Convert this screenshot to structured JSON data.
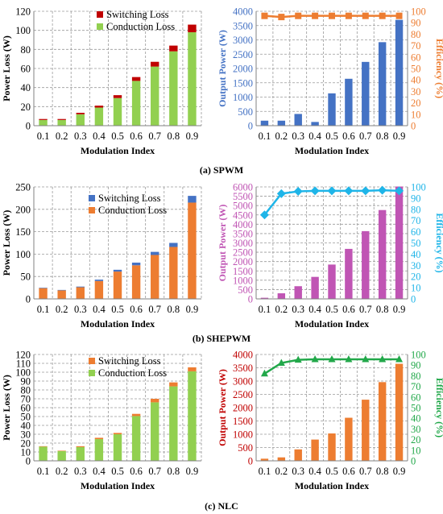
{
  "captions": {
    "a": "(a) SPWM",
    "b": "(b) SHEPWM",
    "c": "(c) NLC"
  },
  "colors": {
    "switching_spwm": "#c00000",
    "conduction_spwm": "#92d050",
    "output_spwm": "#4472c4",
    "eff_spwm": "#ed7d31",
    "switching_shepwm": "#4472c4",
    "conduction_shepwm": "#ed7d31",
    "output_shepwm": "#c055b4",
    "eff_shepwm": "#1fb5e8",
    "switching_nlc": "#ed7d31",
    "conduction_nlc": "#92d050",
    "output_nlc": "#ed7d31",
    "eff_nlc": "#22a84a",
    "axis_blue": "#4472c4",
    "axis_orange": "#ed7d31",
    "axis_magenta": "#c055b4",
    "axis_cyan": "#1fb5e8",
    "axis_red": "#c00000",
    "axis_green": "#22a84a"
  },
  "chart_data": [
    {
      "id": "a-loss",
      "type": "bar",
      "stacked": true,
      "categories": [
        "0.1",
        "0.2",
        "0.3",
        "0.4",
        "0.5",
        "0.6",
        "0.7",
        "0.8",
        "0.9"
      ],
      "series": [
        {
          "name": "Conduction Loss",
          "values": [
            6,
            6,
            12,
            19,
            29,
            47,
            62,
            78,
            98
          ]
        },
        {
          "name": "Switching Loss",
          "values": [
            1,
            1,
            1.5,
            2,
            3,
            4,
            5,
            6,
            8
          ]
        }
      ],
      "xlabel": "Modulation Index",
      "ylabel": "Power Loss (W)",
      "ylim": [
        0,
        120
      ],
      "yticks": [
        0,
        20,
        40,
        60,
        80,
        100,
        120
      ],
      "legend": "top-center",
      "legend_order": [
        "Switching Loss",
        "Conduction Loss"
      ],
      "grid": true
    },
    {
      "id": "a-output",
      "type": "bar",
      "categories": [
        "0.1",
        "0.2",
        "0.3",
        "0.4",
        "0.5",
        "0.6",
        "0.7",
        "0.8",
        "0.9"
      ],
      "series": [
        {
          "name": "Output Power",
          "values": [
            175,
            175,
            410,
            130,
            1130,
            1640,
            2230,
            2920,
            3700
          ]
        },
        {
          "name": "Efficiency",
          "type": "line",
          "axis": "right",
          "marker": "square",
          "values": [
            96,
            95,
            96,
            96,
            96,
            96,
            96,
            96,
            96
          ]
        }
      ],
      "xlabel": "Modulation Index",
      "ylabel": "Output Power (W)",
      "ylim": [
        0,
        4000
      ],
      "yticks": [
        0,
        500,
        1000,
        1500,
        2000,
        2500,
        3000,
        3500,
        4000
      ],
      "y2label": "Efficiency (%)",
      "y2lim": [
        0,
        100
      ],
      "y2ticks": [
        0,
        10,
        20,
        30,
        40,
        50,
        60,
        70,
        80,
        90,
        100
      ],
      "grid": true
    },
    {
      "id": "b-loss",
      "type": "bar",
      "stacked": true,
      "categories": [
        "0.1",
        "0.2",
        "0.3",
        "0.4",
        "0.5",
        "0.6",
        "0.7",
        "0.8",
        "0.9"
      ],
      "series": [
        {
          "name": "Conduction Loss",
          "values": [
            24,
            19,
            26,
            40,
            61,
            75,
            98,
            116,
            215
          ]
        },
        {
          "name": "Switching Loss",
          "values": [
            1,
            1,
            1.5,
            3,
            4,
            6,
            7,
            9,
            15
          ]
        }
      ],
      "xlabel": "Modulation Index",
      "ylabel": "Power Loss (W)",
      "ylim": [
        0,
        250
      ],
      "yticks": [
        0,
        50,
        100,
        150,
        200,
        250
      ],
      "legend": "top-center",
      "legend_order": [
        "Switching Loss",
        "Conduction Loss"
      ],
      "grid": true
    },
    {
      "id": "b-output",
      "type": "bar",
      "categories": [
        "0.1",
        "0.2",
        "0.3",
        "0.4",
        "0.5",
        "0.6",
        "0.7",
        "0.8",
        "0.9"
      ],
      "series": [
        {
          "name": "Output Power",
          "values": [
            60,
            300,
            680,
            1180,
            1840,
            2680,
            3630,
            4760,
            6020
          ]
        },
        {
          "name": "Efficiency",
          "type": "line",
          "axis": "right",
          "marker": "diamond",
          "values": [
            75,
            94,
            96,
            96.5,
            96.5,
            96.5,
            96.5,
            97,
            96.5
          ]
        }
      ],
      "xlabel": "Modulation Index",
      "ylabel": "Output Power (W)",
      "ylim": [
        0,
        6000
      ],
      "yticks": [
        0,
        500,
        1000,
        1500,
        2000,
        2500,
        3000,
        3500,
        4000,
        4500,
        5000,
        5500,
        6000
      ],
      "y2label": "Efficiency (%)",
      "y2lim": [
        0,
        100
      ],
      "y2ticks": [
        0,
        10,
        20,
        30,
        40,
        50,
        60,
        70,
        80,
        90,
        100
      ],
      "grid": true
    },
    {
      "id": "c-loss",
      "type": "bar",
      "stacked": true,
      "categories": [
        "0.1",
        "0.2",
        "0.3",
        "0.4",
        "0.5",
        "0.6",
        "0.7",
        "0.8",
        "0.9"
      ],
      "series": [
        {
          "name": "Conduction Loss",
          "values": [
            16,
            11,
            15.5,
            24.5,
            30,
            50.5,
            66,
            84,
            101
          ]
        },
        {
          "name": "Switching Loss",
          "values": [
            0.5,
            0.5,
            1,
            1.5,
            1.5,
            2.5,
            4,
            4.5,
            4.5
          ]
        }
      ],
      "xlabel": "Modulation Index",
      "ylabel": "Power Loss (W)",
      "ylim": [
        0,
        120
      ],
      "yticks": [
        0,
        10,
        20,
        30,
        40,
        50,
        60,
        70,
        80,
        90,
        100,
        110,
        120
      ],
      "legend": "top-center",
      "legend_order": [
        "Switching Loss",
        "Conduction Loss"
      ],
      "grid": true
    },
    {
      "id": "c-output",
      "type": "bar",
      "categories": [
        "0.1",
        "0.2",
        "0.3",
        "0.4",
        "0.5",
        "0.6",
        "0.7",
        "0.8",
        "0.9"
      ],
      "series": [
        {
          "name": "Output Power",
          "values": [
            80,
            130,
            430,
            800,
            1030,
            1620,
            2300,
            2960,
            3650
          ]
        },
        {
          "name": "Efficiency",
          "type": "line",
          "axis": "right",
          "marker": "triangle",
          "values": [
            82,
            92,
            95,
            95.5,
            95.5,
            95.5,
            95.5,
            95.5,
            95.5
          ]
        }
      ],
      "xlabel": "Modulation Index",
      "ylabel": "Output Power (W)",
      "ylim": [
        0,
        4000
      ],
      "yticks": [
        0,
        500,
        1000,
        1500,
        2000,
        2500,
        3000,
        3500,
        4000
      ],
      "y2label": "Efficiency (%)",
      "y2lim": [
        0,
        100
      ],
      "y2ticks": [
        0,
        10,
        20,
        30,
        40,
        50,
        60,
        70,
        80,
        90,
        100
      ],
      "grid": true
    }
  ]
}
